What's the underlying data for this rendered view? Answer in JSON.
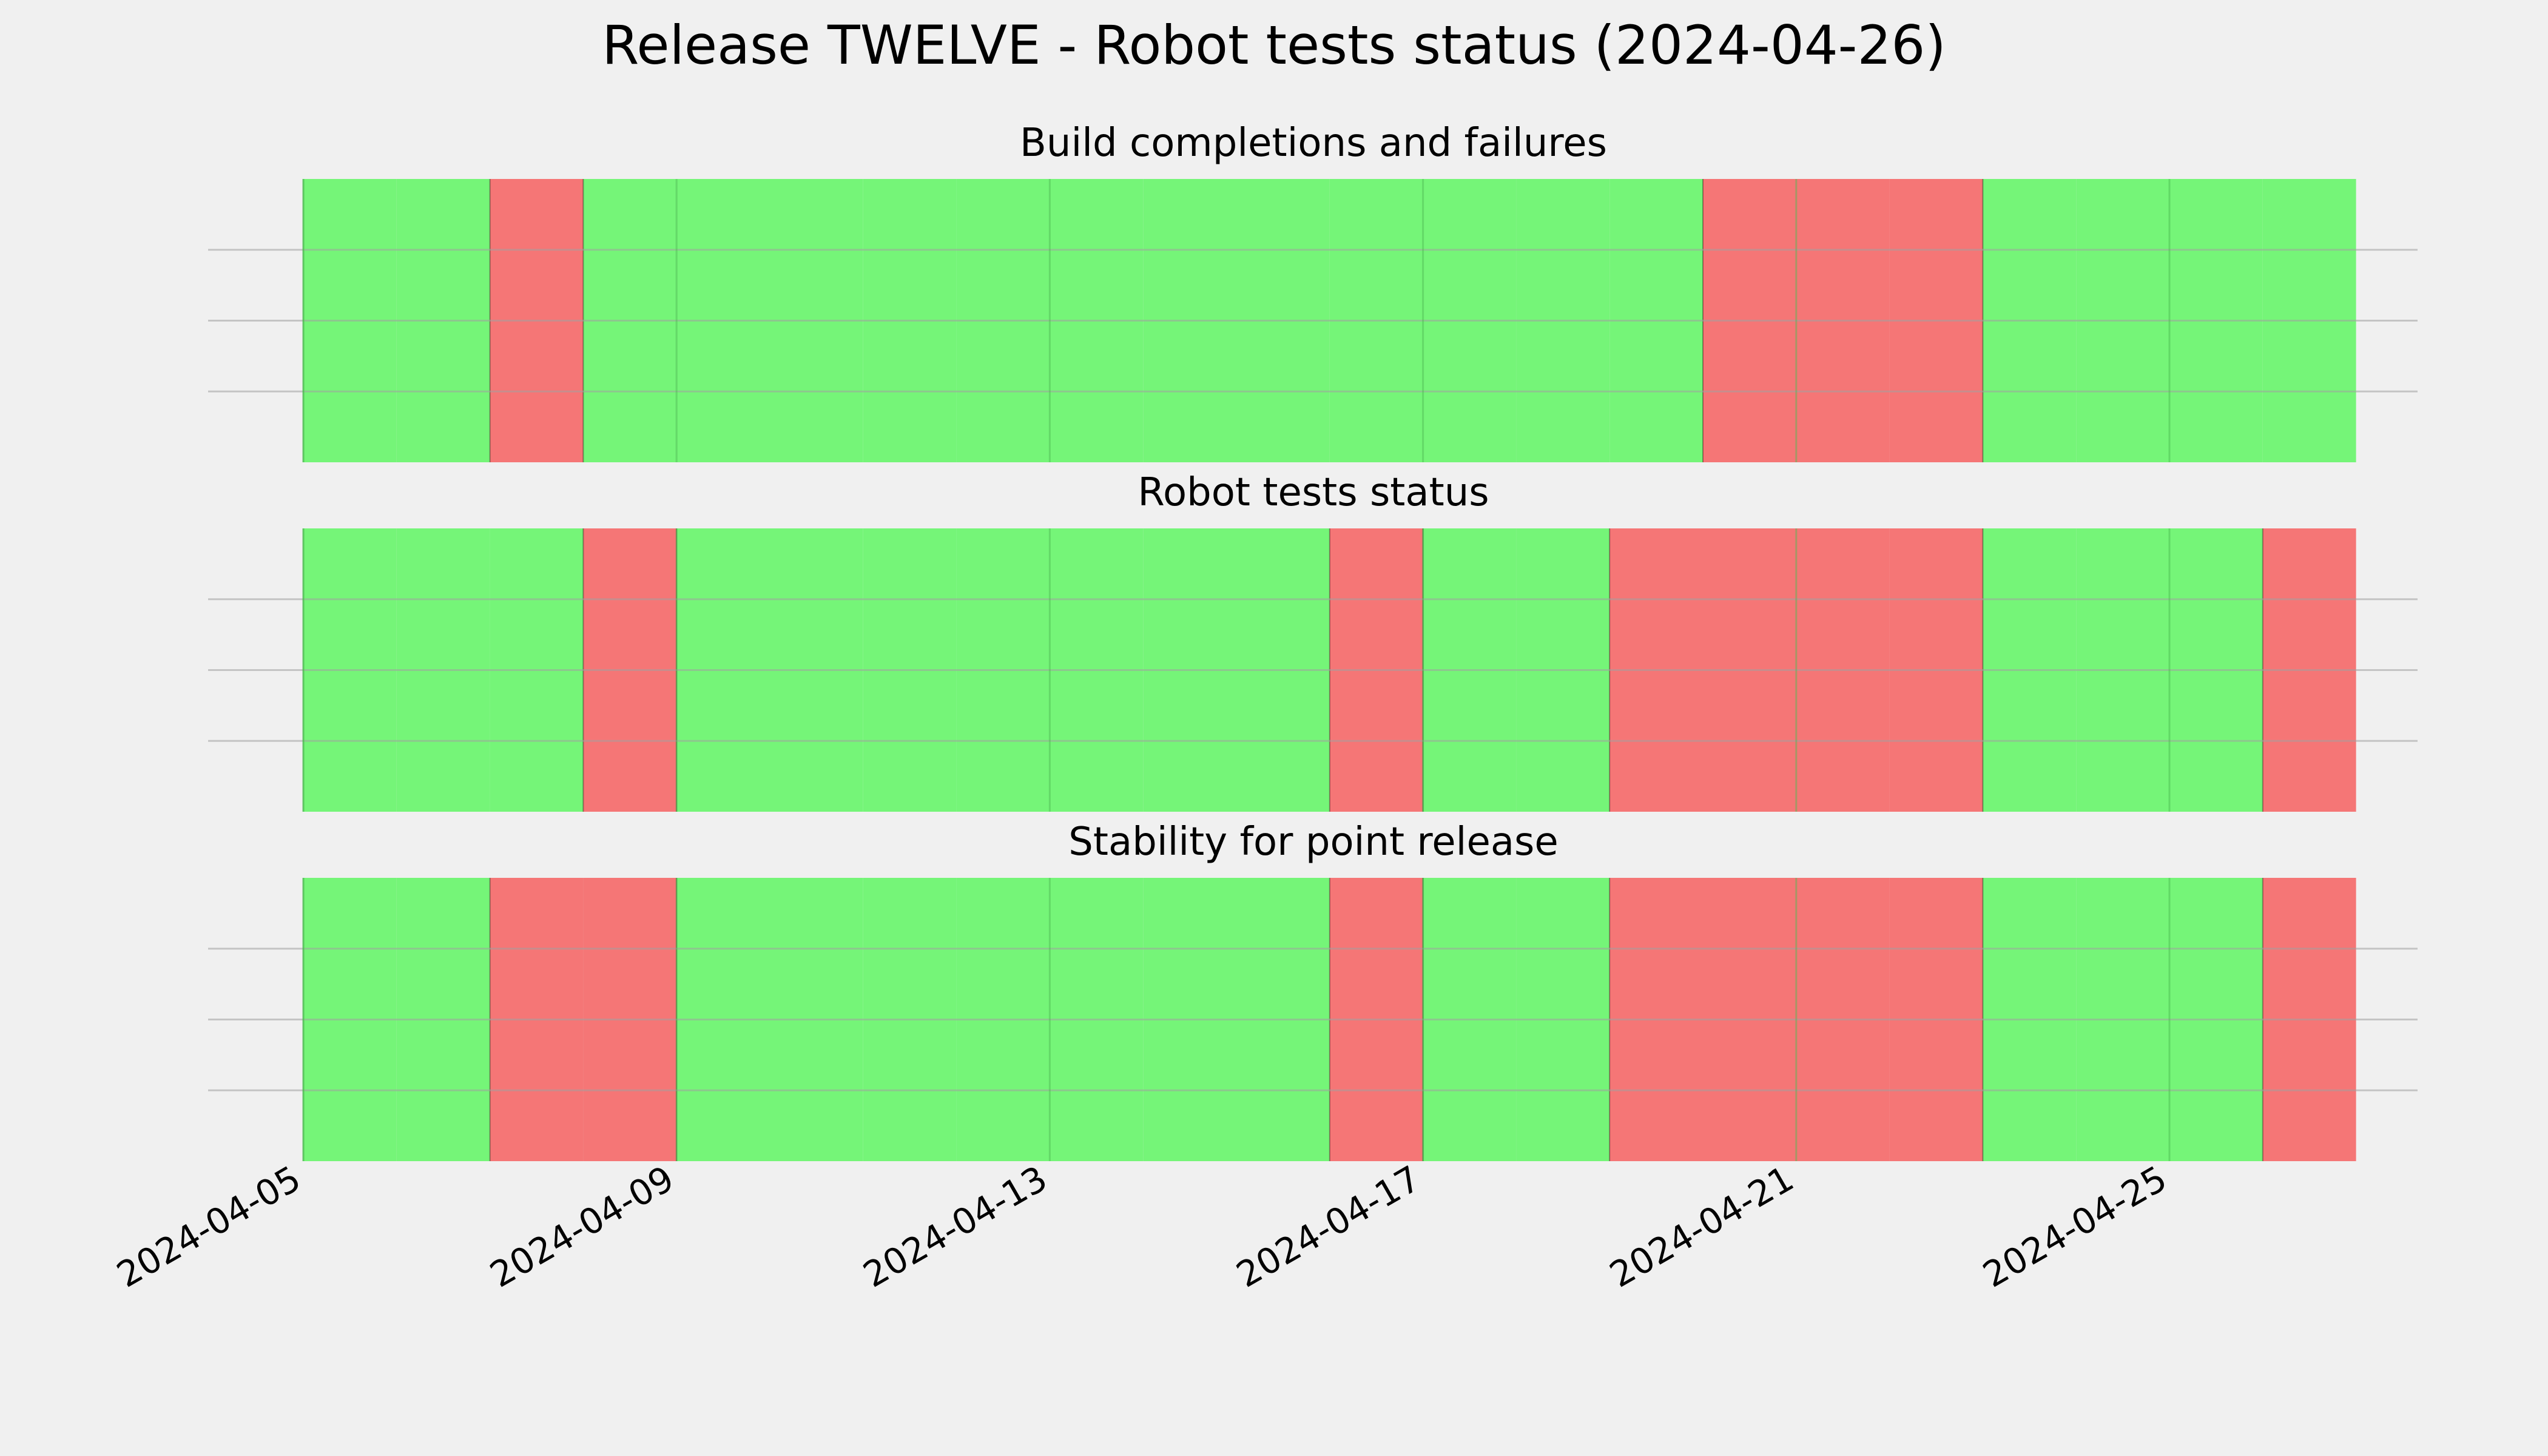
{
  "chart_data": {
    "type": "timeline",
    "title": "Release TWELVE - Robot tests status (2024-04-26)",
    "x_tick_labels": [
      "2024-04-05",
      "2024-04-09",
      "2024-04-13",
      "2024-04-17",
      "2024-04-21",
      "2024-04-25"
    ],
    "x_tick_dates": [
      "2024-04-05",
      "2024-04-09",
      "2024-04-13",
      "2024-04-17",
      "2024-04-21",
      "2024-04-25"
    ],
    "xlim": [
      "2024-04-04",
      "2024-04-28"
    ],
    "grid": true,
    "status_colors": {
      "pass": "#75f578",
      "fail": "#f57676"
    },
    "panels": [
      {
        "name": "Build completions and failures",
        "days": [
          {
            "date": "2024-04-05",
            "status": "pass"
          },
          {
            "date": "2024-04-06",
            "status": "pass"
          },
          {
            "date": "2024-04-07",
            "status": "fail"
          },
          {
            "date": "2024-04-08",
            "status": "pass"
          },
          {
            "date": "2024-04-09",
            "status": "pass"
          },
          {
            "date": "2024-04-10",
            "status": "pass"
          },
          {
            "date": "2024-04-11",
            "status": "pass"
          },
          {
            "date": "2024-04-12",
            "status": "pass"
          },
          {
            "date": "2024-04-13",
            "status": "pass"
          },
          {
            "date": "2024-04-14",
            "status": "pass"
          },
          {
            "date": "2024-04-15",
            "status": "pass"
          },
          {
            "date": "2024-04-16",
            "status": "pass"
          },
          {
            "date": "2024-04-17",
            "status": "pass"
          },
          {
            "date": "2024-04-18",
            "status": "pass"
          },
          {
            "date": "2024-04-19",
            "status": "pass"
          },
          {
            "date": "2024-04-20",
            "status": "fail"
          },
          {
            "date": "2024-04-21",
            "status": "fail"
          },
          {
            "date": "2024-04-22",
            "status": "fail"
          },
          {
            "date": "2024-04-23",
            "status": "pass"
          },
          {
            "date": "2024-04-24",
            "status": "pass"
          },
          {
            "date": "2024-04-25",
            "status": "pass"
          },
          {
            "date": "2024-04-26",
            "status": "pass"
          }
        ]
      },
      {
        "name": "Robot tests status",
        "days": [
          {
            "date": "2024-04-05",
            "status": "pass"
          },
          {
            "date": "2024-04-06",
            "status": "pass"
          },
          {
            "date": "2024-04-07",
            "status": "pass"
          },
          {
            "date": "2024-04-08",
            "status": "fail"
          },
          {
            "date": "2024-04-09",
            "status": "pass"
          },
          {
            "date": "2024-04-10",
            "status": "pass"
          },
          {
            "date": "2024-04-11",
            "status": "pass"
          },
          {
            "date": "2024-04-12",
            "status": "pass"
          },
          {
            "date": "2024-04-13",
            "status": "pass"
          },
          {
            "date": "2024-04-14",
            "status": "pass"
          },
          {
            "date": "2024-04-15",
            "status": "pass"
          },
          {
            "date": "2024-04-16",
            "status": "fail"
          },
          {
            "date": "2024-04-17",
            "status": "pass"
          },
          {
            "date": "2024-04-18",
            "status": "pass"
          },
          {
            "date": "2024-04-19",
            "status": "fail"
          },
          {
            "date": "2024-04-20",
            "status": "fail"
          },
          {
            "date": "2024-04-21",
            "status": "fail"
          },
          {
            "date": "2024-04-22",
            "status": "fail"
          },
          {
            "date": "2024-04-23",
            "status": "pass"
          },
          {
            "date": "2024-04-24",
            "status": "pass"
          },
          {
            "date": "2024-04-25",
            "status": "pass"
          },
          {
            "date": "2024-04-26",
            "status": "fail"
          }
        ]
      },
      {
        "name": "Stability for point release",
        "days": [
          {
            "date": "2024-04-05",
            "status": "pass"
          },
          {
            "date": "2024-04-06",
            "status": "pass"
          },
          {
            "date": "2024-04-07",
            "status": "fail"
          },
          {
            "date": "2024-04-08",
            "status": "fail"
          },
          {
            "date": "2024-04-09",
            "status": "pass"
          },
          {
            "date": "2024-04-10",
            "status": "pass"
          },
          {
            "date": "2024-04-11",
            "status": "pass"
          },
          {
            "date": "2024-04-12",
            "status": "pass"
          },
          {
            "date": "2024-04-13",
            "status": "pass"
          },
          {
            "date": "2024-04-14",
            "status": "pass"
          },
          {
            "date": "2024-04-15",
            "status": "pass"
          },
          {
            "date": "2024-04-16",
            "status": "fail"
          },
          {
            "date": "2024-04-17",
            "status": "pass"
          },
          {
            "date": "2024-04-18",
            "status": "pass"
          },
          {
            "date": "2024-04-19",
            "status": "fail"
          },
          {
            "date": "2024-04-20",
            "status": "fail"
          },
          {
            "date": "2024-04-21",
            "status": "fail"
          },
          {
            "date": "2024-04-22",
            "status": "fail"
          },
          {
            "date": "2024-04-23",
            "status": "pass"
          },
          {
            "date": "2024-04-24",
            "status": "pass"
          },
          {
            "date": "2024-04-25",
            "status": "pass"
          },
          {
            "date": "2024-04-26",
            "status": "fail"
          }
        ]
      }
    ]
  }
}
